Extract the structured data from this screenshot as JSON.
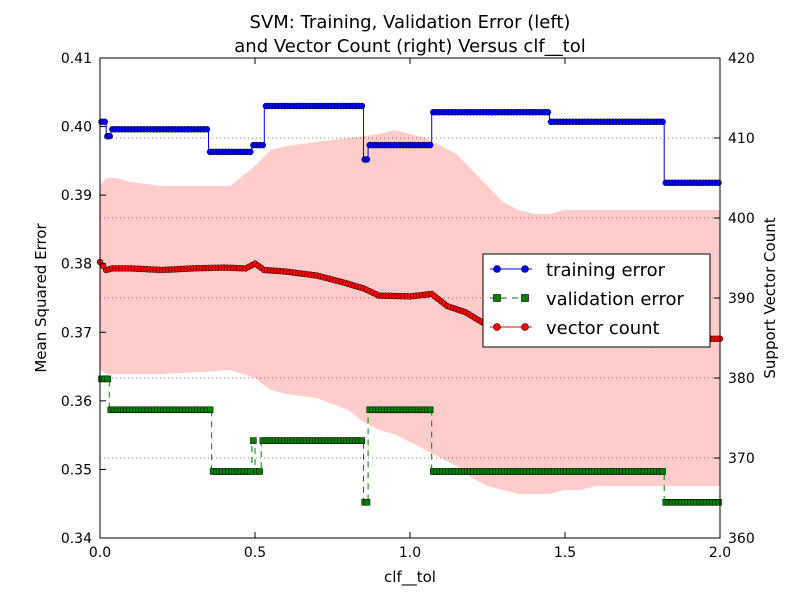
{
  "chart_data": {
    "type": "line",
    "title_line1": "SVM: Training, Validation Error (left)",
    "title_line2": "and Vector Count (right) Versus clf__tol",
    "xlabel": "clf__tol",
    "ylabel_left": "Mean Squared Error",
    "ylabel_right": "Support Vector Count",
    "xlim": [
      0.0,
      2.0
    ],
    "ylim_left": [
      0.34,
      0.41
    ],
    "ylim_right": [
      360,
      420
    ],
    "x_ticks": [
      "0.0",
      "0.5",
      "1.0",
      "1.5",
      "2.0"
    ],
    "y_left_ticks": [
      "0.34",
      "0.35",
      "0.36",
      "0.37",
      "0.38",
      "0.39",
      "0.40",
      "0.41"
    ],
    "y_right_ticks": [
      "360",
      "370",
      "380",
      "390",
      "400",
      "410",
      "420"
    ],
    "right_gridlines": [
      370,
      380,
      390,
      400,
      410
    ],
    "legend_position": "center-right",
    "colors": {
      "training": "#0000ff",
      "validation": "#008000",
      "vector": "#ff0000",
      "band": "#ffcccc"
    },
    "series": [
      {
        "name": "training error",
        "axis": "left",
        "style": "solid",
        "marker": "circle",
        "steps": [
          [
            0.0,
            0.02,
            0.4007
          ],
          [
            0.02,
            0.035,
            0.3986
          ],
          [
            0.035,
            0.35,
            0.3996
          ],
          [
            0.35,
            0.49,
            0.3963
          ],
          [
            0.49,
            0.53,
            0.3973
          ],
          [
            0.53,
            0.85,
            0.403
          ],
          [
            0.85,
            0.865,
            0.3952
          ],
          [
            0.865,
            1.07,
            0.3973
          ],
          [
            1.07,
            1.45,
            0.4021
          ],
          [
            1.45,
            1.82,
            0.4007
          ],
          [
            1.82,
            2.0,
            0.3918
          ]
        ]
      },
      {
        "name": "validation error",
        "axis": "left",
        "style": "dashed",
        "marker": "square",
        "steps": [
          [
            0.0,
            0.03,
            0.3632
          ],
          [
            0.03,
            0.36,
            0.3587
          ],
          [
            0.36,
            0.49,
            0.3497
          ],
          [
            0.49,
            0.5,
            0.3542
          ],
          [
            0.5,
            0.52,
            0.3497
          ],
          [
            0.52,
            0.85,
            0.3542
          ],
          [
            0.85,
            0.865,
            0.3452
          ],
          [
            0.865,
            1.07,
            0.3587
          ],
          [
            1.07,
            1.82,
            0.3497
          ],
          [
            1.82,
            2.0,
            0.3452
          ]
        ]
      },
      {
        "name": "vector count",
        "axis": "right",
        "style": "solid",
        "marker": "circle",
        "x": [
          0.0,
          0.02,
          0.04,
          0.1,
          0.2,
          0.3,
          0.4,
          0.47,
          0.5,
          0.53,
          0.6,
          0.7,
          0.78,
          0.85,
          0.9,
          1.0,
          1.07,
          1.12,
          1.18,
          1.24,
          1.3,
          1.38,
          1.45,
          1.5,
          1.6,
          1.7,
          1.78,
          1.82,
          1.9,
          2.0
        ],
        "values": [
          394.5,
          393.5,
          393.7,
          393.7,
          393.5,
          393.7,
          393.8,
          393.7,
          394.3,
          393.5,
          393.3,
          392.8,
          392.0,
          391.2,
          390.3,
          390.2,
          390.5,
          389.0,
          388.2,
          386.8,
          385.8,
          385.5,
          384.9,
          384.7,
          384.9,
          384.5,
          384.2,
          384.9,
          384.9,
          384.9
        ]
      },
      {
        "name": "",
        "axis": "right",
        "type": "area",
        "x": [
          0.0,
          0.02,
          0.05,
          0.1,
          0.2,
          0.35,
          0.42,
          0.5,
          0.55,
          0.6,
          0.7,
          0.8,
          0.85,
          0.9,
          0.95,
          1.0,
          1.05,
          1.1,
          1.15,
          1.2,
          1.25,
          1.3,
          1.35,
          1.4,
          1.45,
          1.5,
          1.55,
          1.6,
          1.7,
          1.8,
          1.9,
          2.0
        ],
        "upper": [
          404.0,
          405.0,
          405.0,
          404.5,
          404.0,
          404.0,
          404.0,
          406.5,
          408.5,
          409.0,
          409.5,
          410.0,
          410.2,
          410.5,
          411.0,
          410.5,
          410.0,
          409.0,
          408.0,
          406.0,
          404.0,
          402.0,
          401.0,
          400.5,
          400.5,
          401.0,
          401.0,
          401.0,
          401.0,
          401.0,
          401.0,
          401.0
        ],
        "lower": [
          381.0,
          380.5,
          380.5,
          380.5,
          380.5,
          380.8,
          381.0,
          380.0,
          378.5,
          378.0,
          377.5,
          376.0,
          374.5,
          373.5,
          373.0,
          372.0,
          371.0,
          370.0,
          369.0,
          367.5,
          366.5,
          366.0,
          365.5,
          365.5,
          365.5,
          366.0,
          366.0,
          366.5,
          366.5,
          366.5,
          366.5,
          366.5
        ]
      }
    ]
  }
}
